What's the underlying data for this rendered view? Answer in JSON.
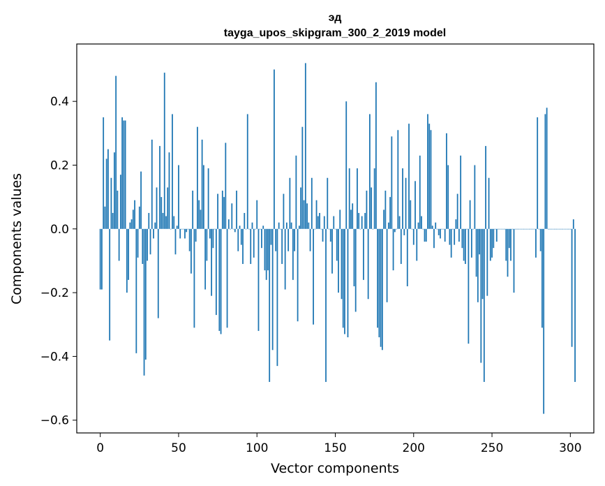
{
  "chart_data": {
    "type": "bar",
    "title": "эд",
    "subtitle": "tayga_upos_skipgram_300_2_2019 model",
    "xlabel": "Vector components",
    "ylabel": "Components values",
    "xlim": [
      -15,
      315
    ],
    "ylim": [
      -0.64,
      0.58
    ],
    "xticks": [
      0,
      50,
      100,
      150,
      200,
      250,
      300
    ],
    "yticks": [
      -0.6,
      -0.4,
      -0.2,
      0.0,
      0.2,
      0.4
    ],
    "ytick_labels": [
      "−0.6",
      "−0.4",
      "−0.2",
      "0.0",
      "0.2",
      "0.4"
    ],
    "bar_color": "#1f77b4",
    "grid": false,
    "x_start": 0,
    "values": [
      -0.19,
      -0.19,
      0.35,
      0.07,
      0.22,
      0.25,
      -0.35,
      0.16,
      0.05,
      0.24,
      0.48,
      0.12,
      -0.1,
      0.17,
      0.35,
      0.34,
      0.34,
      -0.2,
      -0.16,
      0.02,
      0.03,
      0.06,
      0.09,
      -0.39,
      -0.09,
      0.07,
      0.18,
      -0.11,
      -0.46,
      -0.41,
      -0.1,
      0.05,
      -0.08,
      0.28,
      -0.03,
      0.02,
      0.13,
      -0.28,
      0.26,
      0.1,
      0.05,
      0.49,
      0.04,
      0.13,
      0.24,
      0.0,
      0.36,
      0.04,
      -0.08,
      0.01,
      0.2,
      -0.03,
      0.0,
      0.0,
      -0.03,
      -0.01,
      0.0,
      -0.07,
      -0.14,
      0.12,
      -0.31,
      -0.04,
      0.32,
      0.09,
      0.06,
      0.28,
      0.2,
      -0.19,
      -0.1,
      0.19,
      -0.03,
      -0.21,
      -0.06,
      0.0,
      -0.27,
      0.11,
      -0.32,
      -0.33,
      0.12,
      0.1,
      0.27,
      -0.31,
      0.03,
      0.0,
      0.08,
      0.0,
      -0.01,
      0.12,
      -0.07,
      0.01,
      -0.05,
      -0.11,
      0.05,
      0.0,
      0.36,
      0.0,
      -0.11,
      0.02,
      -0.09,
      0.0,
      0.09,
      -0.32,
      0.0,
      -0.06,
      0.01,
      -0.13,
      -0.16,
      -0.13,
      -0.48,
      -0.05,
      -0.38,
      0.5,
      -0.07,
      -0.43,
      0.02,
      0.0,
      -0.11,
      0.11,
      -0.19,
      0.02,
      -0.07,
      0.16,
      0.02,
      -0.16,
      -0.07,
      0.23,
      -0.29,
      0.01,
      0.13,
      0.32,
      0.09,
      0.52,
      0.08,
      0.02,
      -0.07,
      0.16,
      -0.3,
      0.0,
      0.09,
      0.04,
      0.05,
      0.0,
      -0.04,
      0.04,
      -0.48,
      0.16,
      0.0,
      -0.04,
      -0.14,
      0.04,
      0.0,
      -0.1,
      -0.2,
      0.06,
      -0.22,
      -0.31,
      -0.33,
      0.4,
      -0.34,
      0.19,
      0.06,
      0.08,
      -0.18,
      -0.26,
      0.19,
      0.05,
      0.0,
      0.04,
      -0.16,
      0.05,
      0.12,
      -0.22,
      0.36,
      0.13,
      0.0,
      0.19,
      0.46,
      -0.31,
      -0.34,
      -0.37,
      -0.38,
      0.06,
      0.12,
      -0.23,
      0.02,
      0.1,
      0.29,
      -0.13,
      -0.01,
      0.0,
      0.31,
      0.04,
      -0.11,
      0.19,
      -0.02,
      0.16,
      -0.18,
      0.33,
      0.09,
      0.0,
      -0.05,
      0.15,
      -0.1,
      0.02,
      0.23,
      0.04,
      0.0,
      -0.04,
      -0.04,
      0.36,
      0.33,
      0.31,
      0.01,
      -0.06,
      0.02,
      0.0,
      -0.02,
      -0.03,
      0.0,
      0.0,
      -0.04,
      0.3,
      0.2,
      -0.05,
      -0.09,
      0.0,
      -0.05,
      0.03,
      0.11,
      -0.04,
      0.23,
      -0.06,
      -0.1,
      -0.11,
      0.0,
      -0.36,
      0.09,
      -0.09,
      0.0,
      0.2,
      -0.15,
      -0.23,
      -0.08,
      -0.42,
      -0.22,
      -0.48,
      0.26,
      -0.21,
      0.16,
      -0.1,
      -0.09,
      -0.06,
      0.0,
      -0.04,
      0.0,
      0.0,
      0.0,
      0.0,
      0.0,
      -0.1,
      -0.15,
      -0.06,
      -0.1,
      0.0,
      -0.2,
      0.0,
      0.0,
      0.0,
      0.0,
      0.0,
      0.0,
      0.0,
      0.0,
      0.0,
      0.0,
      0.0,
      0.0,
      0.0,
      -0.09,
      0.35,
      0.0,
      -0.07,
      -0.31,
      -0.58,
      0.36,
      0.38,
      0.0,
      0.0,
      0.0,
      0.0,
      0.0,
      0.0,
      0.0,
      0.0,
      0.0,
      0.0,
      0.0,
      0.0,
      0.0,
      0.0,
      0.0,
      -0.37,
      0.03,
      -0.48
    ]
  }
}
